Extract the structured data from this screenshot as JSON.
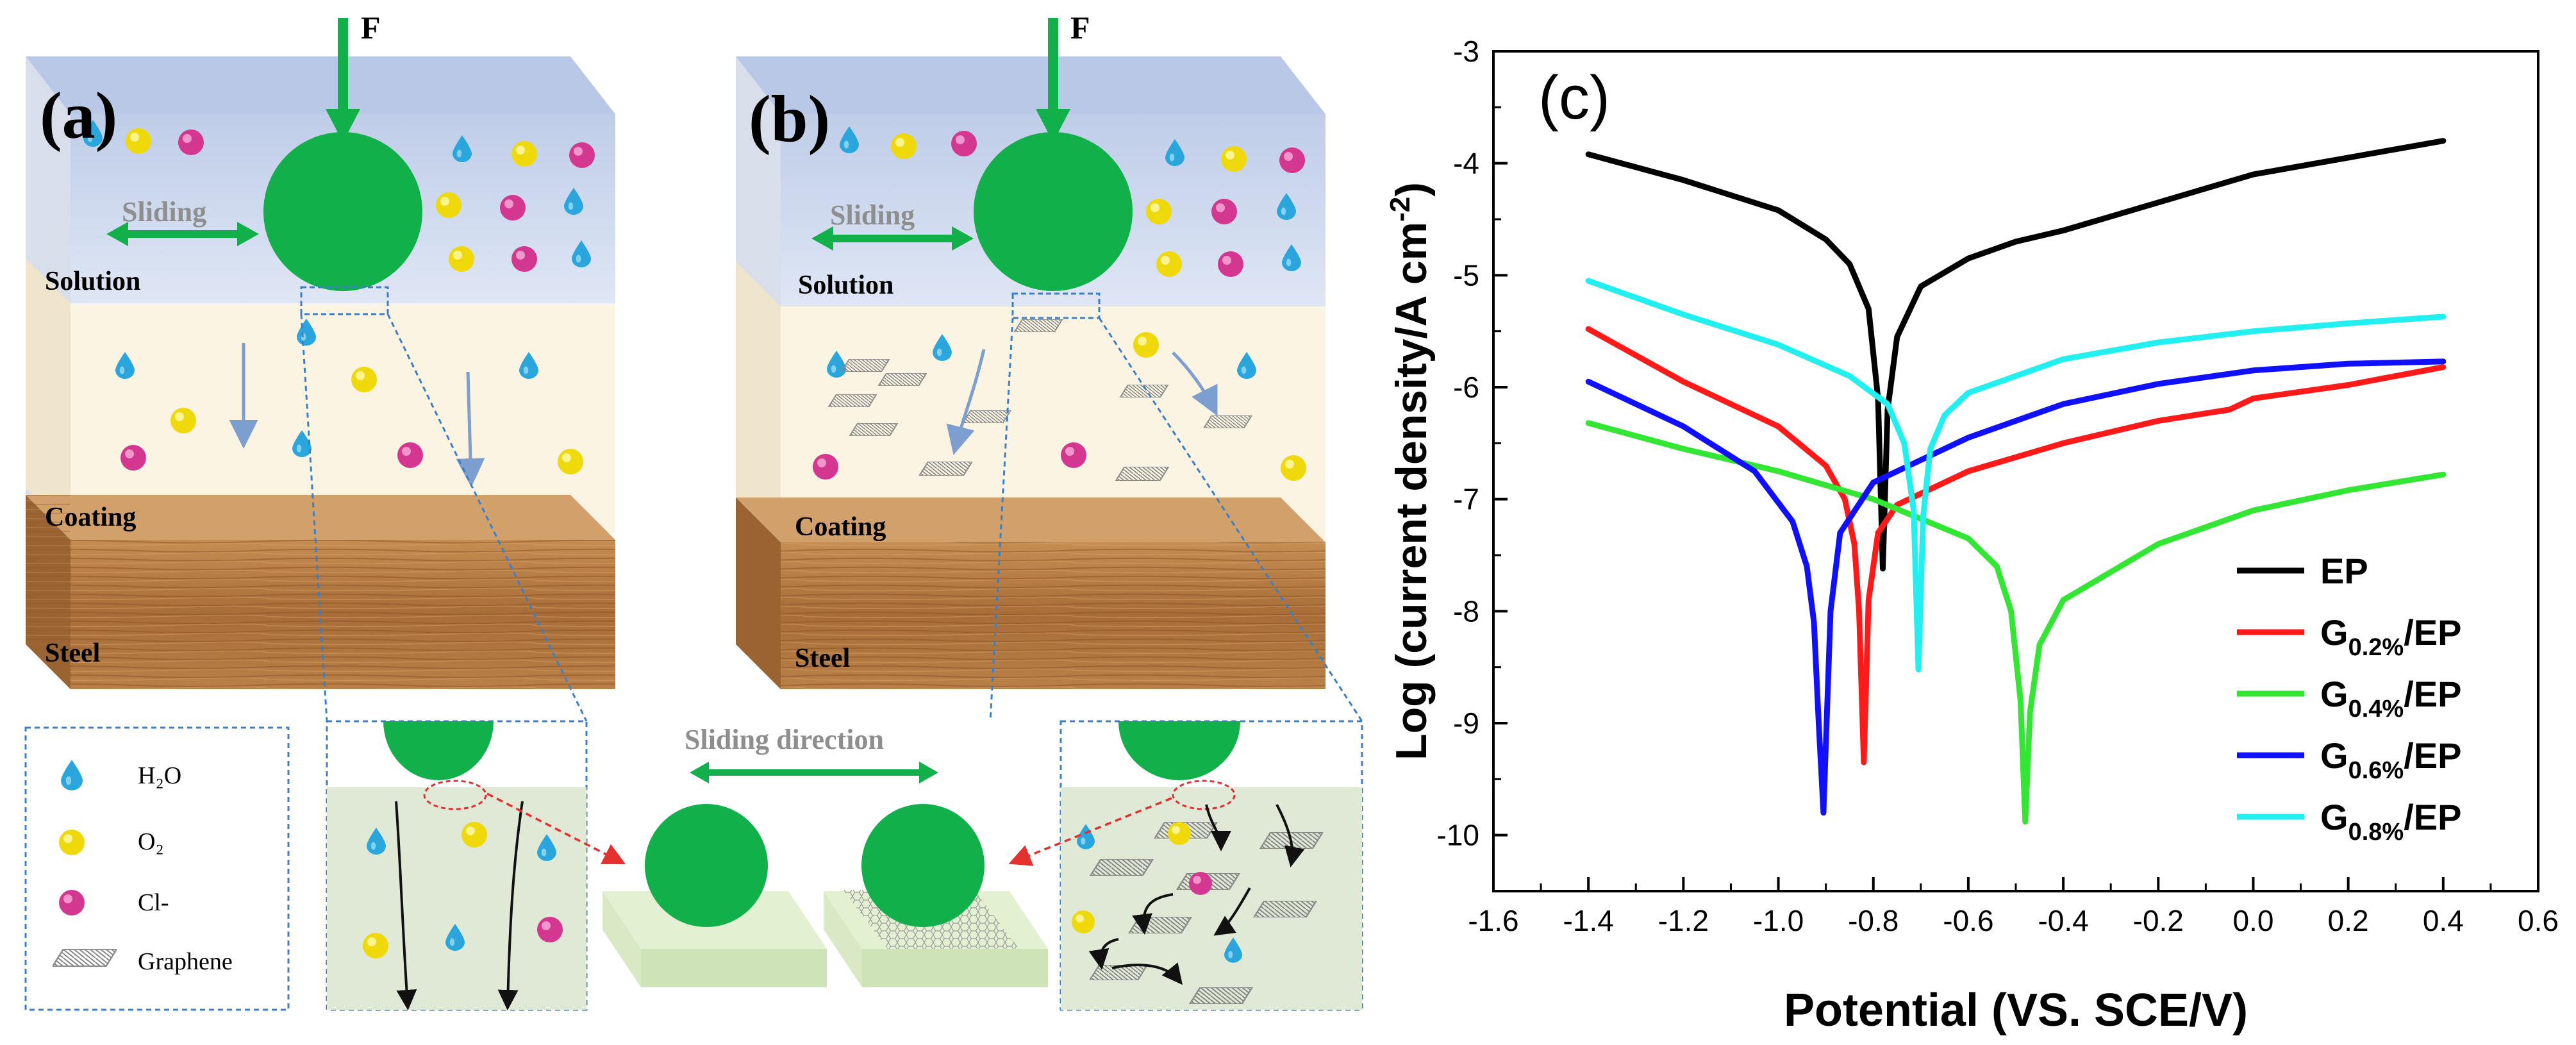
{
  "panels": {
    "a": {
      "label": "(a)",
      "force": "F",
      "sliding": "Sliding",
      "solution": "Solution",
      "coating": "Coating",
      "steel": "Steel"
    },
    "b": {
      "label": "(b)",
      "force": "F",
      "sliding": "Sliding",
      "solution": "Solution",
      "coating": "Coating",
      "steel": "Steel"
    }
  },
  "legend_box": {
    "items": [
      {
        "name": "water",
        "text": "H₂O",
        "color": "#2aa6dc"
      },
      {
        "name": "oxygen",
        "text": "O₂",
        "color": "#f2e20f"
      },
      {
        "name": "chloride",
        "text": "Cl-",
        "color": "#d6389a"
      },
      {
        "name": "graphene",
        "text": "Graphene",
        "color": "#9a9a9a"
      }
    ]
  },
  "sliding_direction": "Sliding direction",
  "colors": {
    "ball": "#12b04a",
    "solution": "#cdd9ef",
    "coating": "#fbf4e3",
    "wood": "#b57a41",
    "dashed": "#3c7fc8",
    "flow_arrow": "#7d9fcf",
    "pore": "#111111"
  },
  "chart_data": {
    "type": "line",
    "panel_label": "(c)",
    "title": "",
    "xlabel": "Potential (VS. SCE/V)",
    "ylabel": "Log (current density/A cm",
    "ylabel_sup": "-2",
    "ylabel_close": ")",
    "xlim": [
      -1.6,
      0.6
    ],
    "ylim": [
      -10.5,
      -3
    ],
    "xticks": [
      -1.6,
      -1.4,
      -1.2,
      -1.0,
      -0.8,
      -0.6,
      -0.4,
      -0.2,
      0.0,
      0.2,
      0.4,
      0.6
    ],
    "yticks": [
      -3,
      -4,
      -5,
      -6,
      -7,
      -8,
      -9,
      -10
    ],
    "xtick_labels": [
      "-1.6",
      "-1.4",
      "-1.2",
      "-1.0",
      "-0.8",
      "-0.6",
      "-0.4",
      "-0.2",
      "0.0",
      "0.2",
      "0.4",
      "0.6"
    ],
    "ytick_labels": [
      "-3",
      "-4",
      "-5",
      "-6",
      "-7",
      "-8",
      "-9",
      "-10"
    ],
    "legend_position": "lower-right",
    "series": [
      {
        "name": "EP",
        "base": "EP",
        "sub": "",
        "color": "#000000",
        "x": [
          -1.4,
          -1.2,
          -1.0,
          -0.9,
          -0.85,
          -0.81,
          -0.79,
          -0.78,
          -0.77,
          -0.75,
          -0.7,
          -0.6,
          -0.5,
          -0.4,
          -0.2,
          0.0,
          0.2,
          0.4
        ],
        "y": [
          -3.92,
          -4.15,
          -4.42,
          -4.68,
          -4.9,
          -5.3,
          -6.1,
          -7.62,
          -6.2,
          -5.55,
          -5.1,
          -4.85,
          -4.7,
          -4.6,
          -4.35,
          -4.1,
          -3.95,
          -3.8
        ]
      },
      {
        "name": "G0.2%/EP",
        "base": "G",
        "sub": "0.2%",
        "color": "#ff1a1a",
        "x": [
          -1.4,
          -1.2,
          -1.0,
          -0.9,
          -0.86,
          -0.84,
          -0.83,
          -0.82,
          -0.81,
          -0.79,
          -0.75,
          -0.6,
          -0.4,
          -0.2,
          -0.05,
          0.0,
          0.2,
          0.4
        ],
        "y": [
          -5.48,
          -5.95,
          -6.35,
          -6.7,
          -7.0,
          -7.4,
          -8.0,
          -9.35,
          -7.9,
          -7.3,
          -7.05,
          -6.75,
          -6.5,
          -6.3,
          -6.2,
          -6.1,
          -5.98,
          -5.82
        ]
      },
      {
        "name": "G0.4%/EP",
        "base": "G",
        "sub": "0.4%",
        "color": "#33e633",
        "x": [
          -1.4,
          -1.2,
          -1.0,
          -0.8,
          -0.6,
          -0.54,
          -0.51,
          -0.49,
          -0.48,
          -0.47,
          -0.45,
          -0.4,
          -0.2,
          0.0,
          0.2,
          0.4
        ],
        "y": [
          -6.32,
          -6.55,
          -6.75,
          -7.0,
          -7.35,
          -7.6,
          -8.0,
          -8.8,
          -9.88,
          -8.9,
          -8.3,
          -7.9,
          -7.4,
          -7.1,
          -6.92,
          -6.78
        ]
      },
      {
        "name": "G0.6%/EP",
        "base": "G",
        "sub": "0.6%",
        "color": "#1010ff",
        "x": [
          -1.4,
          -1.2,
          -1.05,
          -0.97,
          -0.94,
          -0.925,
          -0.915,
          -0.905,
          -0.89,
          -0.87,
          -0.8,
          -0.6,
          -0.4,
          -0.2,
          0.0,
          0.2,
          0.4
        ],
        "y": [
          -5.95,
          -6.35,
          -6.75,
          -7.2,
          -7.6,
          -8.1,
          -9.0,
          -9.8,
          -8.0,
          -7.3,
          -6.85,
          -6.45,
          -6.15,
          -5.97,
          -5.85,
          -5.79,
          -5.77
        ]
      },
      {
        "name": "G0.8%/EP",
        "base": "G",
        "sub": "0.8%",
        "color": "#22f0f0",
        "x": [
          -1.4,
          -1.2,
          -1.0,
          -0.85,
          -0.77,
          -0.735,
          -0.715,
          -0.705,
          -0.695,
          -0.68,
          -0.65,
          -0.6,
          -0.4,
          -0.2,
          0.0,
          0.2,
          0.4
        ],
        "y": [
          -5.05,
          -5.35,
          -5.62,
          -5.9,
          -6.15,
          -6.5,
          -7.1,
          -8.52,
          -7.15,
          -6.55,
          -6.25,
          -6.05,
          -5.75,
          -5.6,
          -5.5,
          -5.43,
          -5.37
        ]
      }
    ]
  }
}
